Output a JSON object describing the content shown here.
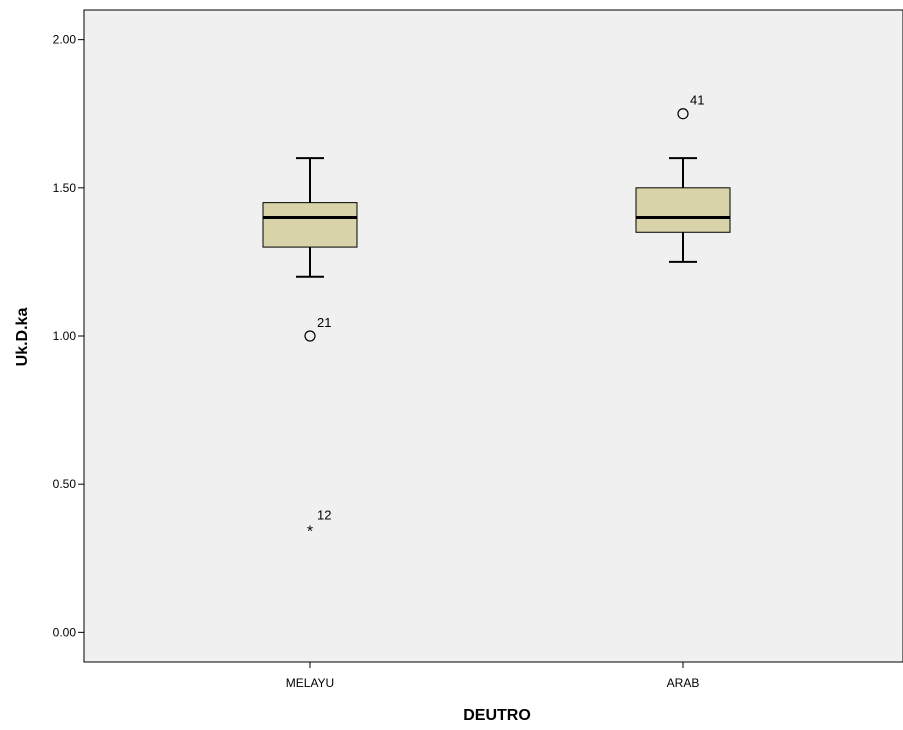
{
  "chart_data": {
    "type": "boxplot",
    "xlabel": "DEUTRO",
    "ylabel": "Uk.D.ka",
    "ylim": [
      -0.1,
      2.1
    ],
    "y_ticks": [
      "0.00",
      "0.50",
      "1.00",
      "1.50",
      "2.00"
    ],
    "y_tick_values": [
      0,
      0.5,
      1.0,
      1.5,
      2.0
    ],
    "grid": false,
    "legend": "none",
    "categories": [
      "MELAYU",
      "ARAB"
    ],
    "boxes": [
      {
        "category": "MELAYU",
        "whisker_low": 1.2,
        "q1": 1.3,
        "median": 1.4,
        "q3": 1.45,
        "whisker_high": 1.6,
        "outliers": [
          {
            "value": 1.0,
            "label": "21",
            "marker": "circle"
          },
          {
            "value": 0.35,
            "label": "12",
            "marker": "star"
          }
        ]
      },
      {
        "category": "ARAB",
        "whisker_low": 1.25,
        "q1": 1.35,
        "median": 1.4,
        "q3": 1.5,
        "whisker_high": 1.6,
        "outliers": [
          {
            "value": 1.75,
            "label": "41",
            "marker": "circle"
          }
        ]
      }
    ],
    "colors": {
      "plot_background": "#f0f0f0",
      "box_fill": "#d8d3a8",
      "stroke": "#000000"
    }
  }
}
